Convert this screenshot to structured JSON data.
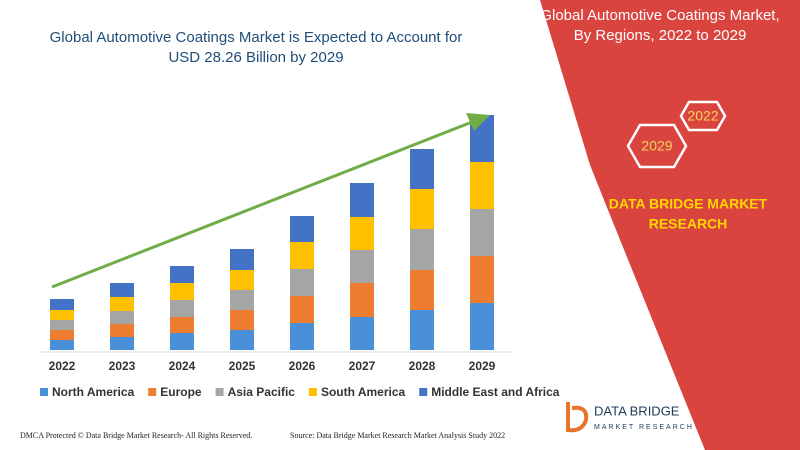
{
  "chart_data": {
    "type": "bar",
    "stacked": true,
    "title": [
      "Global Automotive Coatings Market is Expected to Account for",
      "USD 28.26 Billion by 2029"
    ],
    "categories": [
      "2022",
      "2023",
      "2024",
      "2025",
      "2026",
      "2027",
      "2028",
      "2029"
    ],
    "series": [
      {
        "name": "North America",
        "color": "#4a90d9",
        "values": [
          10,
          13,
          17,
          20,
          27,
          33,
          40,
          47
        ]
      },
      {
        "name": "Europe",
        "color": "#ed7d31",
        "values": [
          10,
          13,
          16,
          20,
          27,
          34,
          40,
          47
        ]
      },
      {
        "name": "Asia Pacific",
        "color": "#a5a5a5",
        "values": [
          10,
          13,
          17,
          20,
          27,
          33,
          41,
          47
        ]
      },
      {
        "name": "South America",
        "color": "#ffc000",
        "values": [
          10,
          14,
          17,
          20,
          27,
          33,
          40,
          47
        ]
      },
      {
        "name": "Middle East and Africa",
        "color": "#4472c4",
        "values": [
          11,
          14,
          17,
          21,
          26,
          34,
          40,
          47
        ]
      }
    ],
    "trend_arrow_color": "#70ad47"
  },
  "side_panel": {
    "title": [
      "Global Automotive Coatings Market,",
      "By Regions, 2022 to 2029"
    ],
    "hexagons": [
      "2022",
      "2029"
    ],
    "brand": [
      "DATA BRIDGE MARKET",
      "RESEARCH"
    ]
  },
  "logo": {
    "name": "DATA BRIDGE",
    "tagline": "MARKET RESEARCH"
  },
  "footer": {
    "left": "DMCA Protected © Data Bridge Market Research- All Rights Reserved.",
    "right": "Source: Data Bridge Market Research Market Analysis Study 2022"
  }
}
